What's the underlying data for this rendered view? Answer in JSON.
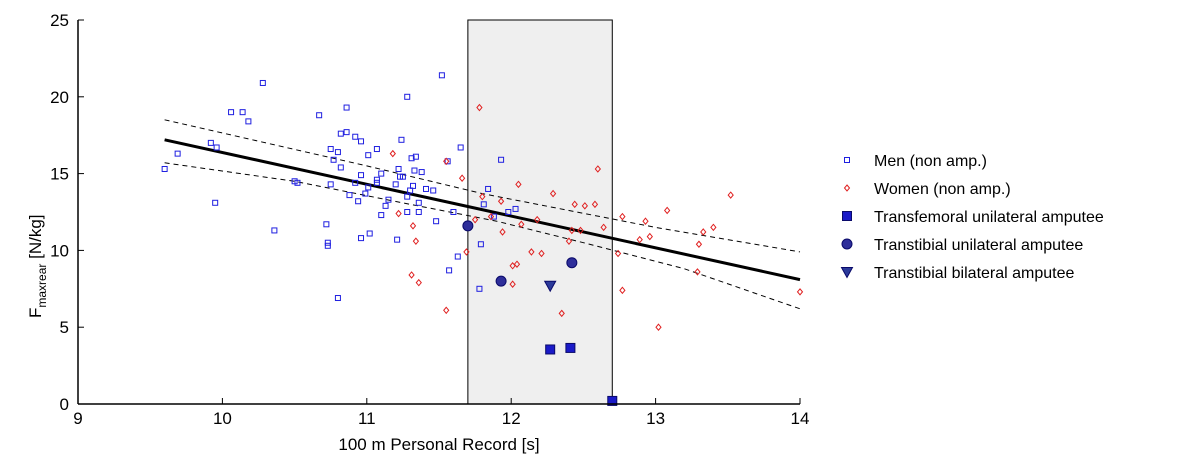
{
  "chart_data": {
    "type": "scatter",
    "title": "",
    "xlabel": "100 m Personal Record [s]",
    "ylabel": {
      "main": "F",
      "subscript": "maxrear",
      "unit": " [N/kg]"
    },
    "xlim": [
      9,
      14
    ],
    "ylim": [
      0,
      25
    ],
    "xticks": [
      "9",
      "10",
      "11",
      "12",
      "13",
      "14"
    ],
    "yticks": [
      "0",
      "5",
      "10",
      "15",
      "20",
      "25"
    ],
    "grid": false,
    "legend_position": "right",
    "shaded_region": {
      "x_start": 11.7,
      "x_end": 12.7
    },
    "regression": {
      "fit": [
        [
          9.6,
          17.2
        ],
        [
          14.0,
          8.1
        ]
      ],
      "ci_upper": [
        [
          9.6,
          18.5
        ],
        [
          11.0,
          15.5
        ],
        [
          11.8,
          13.7
        ],
        [
          12.4,
          12.6
        ],
        [
          13.0,
          11.5
        ],
        [
          14.0,
          9.9
        ]
      ],
      "ci_lower": [
        [
          9.6,
          15.7
        ],
        [
          10.5,
          14.5
        ],
        [
          11.3,
          13.0
        ],
        [
          11.9,
          11.9
        ],
        [
          12.5,
          10.5
        ],
        [
          13.2,
          8.8
        ],
        [
          14.0,
          6.2
        ]
      ]
    },
    "series": [
      {
        "name": "Men (non amp.)",
        "marker": "square-open",
        "color": "#1f1fe0",
        "points": [
          [
            9.6,
            15.3
          ],
          [
            9.69,
            16.3
          ],
          [
            9.95,
            13.1
          ],
          [
            9.96,
            16.7
          ],
          [
            9.92,
            17.0
          ],
          [
            10.06,
            19.0
          ],
          [
            10.14,
            19.0
          ],
          [
            10.18,
            18.4
          ],
          [
            10.28,
            20.9
          ],
          [
            10.36,
            11.3
          ],
          [
            10.5,
            14.5
          ],
          [
            10.67,
            18.8
          ],
          [
            10.72,
            11.7
          ],
          [
            10.73,
            10.3
          ],
          [
            10.73,
            10.5
          ],
          [
            10.75,
            14.3
          ],
          [
            10.75,
            16.6
          ],
          [
            10.77,
            15.9
          ],
          [
            10.8,
            6.9
          ],
          [
            10.8,
            16.4
          ],
          [
            10.82,
            15.4
          ],
          [
            10.82,
            17.6
          ],
          [
            10.86,
            17.7
          ],
          [
            10.86,
            19.3
          ],
          [
            10.88,
            13.6
          ],
          [
            10.92,
            14.4
          ],
          [
            10.92,
            17.4
          ],
          [
            10.94,
            13.2
          ],
          [
            10.96,
            14.9
          ],
          [
            10.96,
            10.8
          ],
          [
            10.96,
            17.1
          ],
          [
            11.01,
            14.1
          ],
          [
            11.01,
            16.2
          ],
          [
            11.02,
            11.1
          ],
          [
            11.07,
            16.6
          ],
          [
            11.07,
            14.4
          ],
          [
            11.07,
            14.6
          ],
          [
            11.1,
            12.3
          ],
          [
            11.13,
            12.9
          ],
          [
            11.15,
            13.3
          ],
          [
            11.2,
            14.3
          ],
          [
            11.22,
            15.3
          ],
          [
            11.23,
            14.8
          ],
          [
            11.24,
            17.2
          ],
          [
            11.25,
            14.8
          ],
          [
            11.28,
            13.5
          ],
          [
            11.28,
            12.5
          ],
          [
            11.28,
            20.0
          ],
          [
            11.3,
            13.9
          ],
          [
            11.31,
            16.0
          ],
          [
            11.32,
            14.2
          ],
          [
            11.33,
            15.2
          ],
          [
            11.34,
            16.1
          ],
          [
            11.36,
            13.1
          ],
          [
            11.36,
            12.5
          ],
          [
            11.38,
            15.1
          ],
          [
            11.41,
            14.0
          ],
          [
            11.46,
            13.9
          ],
          [
            11.48,
            11.9
          ],
          [
            11.52,
            21.4
          ],
          [
            11.56,
            15.8
          ],
          [
            11.57,
            8.7
          ],
          [
            11.6,
            12.5
          ],
          [
            11.63,
            9.6
          ],
          [
            11.65,
            16.7
          ],
          [
            11.78,
            7.5
          ],
          [
            11.79,
            10.4
          ],
          [
            11.81,
            13.0
          ],
          [
            11.84,
            14.0
          ],
          [
            11.88,
            12.2
          ],
          [
            11.93,
            15.9
          ],
          [
            11.98,
            12.5
          ],
          [
            12.03,
            12.7
          ],
          [
            11.21,
            10.7
          ],
          [
            10.52,
            14.4
          ],
          [
            11.1,
            15.0
          ],
          [
            10.99,
            13.7
          ]
        ]
      },
      {
        "name": "Women (non amp.)",
        "marker": "diamond-open",
        "color": "#e02020",
        "points": [
          [
            11.18,
            16.3
          ],
          [
            11.22,
            12.4
          ],
          [
            11.31,
            8.4
          ],
          [
            11.32,
            11.6
          ],
          [
            11.34,
            10.6
          ],
          [
            11.36,
            7.9
          ],
          [
            11.55,
            6.1
          ],
          [
            11.55,
            15.8
          ],
          [
            11.66,
            14.7
          ],
          [
            11.69,
            9.9
          ],
          [
            11.75,
            12.0
          ],
          [
            11.78,
            19.3
          ],
          [
            11.8,
            13.5
          ],
          [
            11.86,
            12.2
          ],
          [
            11.93,
            13.2
          ],
          [
            11.94,
            11.2
          ],
          [
            12.01,
            9.0
          ],
          [
            12.01,
            7.8
          ],
          [
            12.04,
            9.1
          ],
          [
            12.05,
            14.3
          ],
          [
            12.07,
            11.7
          ],
          [
            12.14,
            9.9
          ],
          [
            12.18,
            12.0
          ],
          [
            12.21,
            9.8
          ],
          [
            12.29,
            13.7
          ],
          [
            12.35,
            5.9
          ],
          [
            12.4,
            10.6
          ],
          [
            12.42,
            11.3
          ],
          [
            12.44,
            13.0
          ],
          [
            12.48,
            11.3
          ],
          [
            12.51,
            12.9
          ],
          [
            12.58,
            13.0
          ],
          [
            12.6,
            15.3
          ],
          [
            12.64,
            11.5
          ],
          [
            12.74,
            9.8
          ],
          [
            12.77,
            7.4
          ],
          [
            12.77,
            12.2
          ],
          [
            12.89,
            10.7
          ],
          [
            12.93,
            11.9
          ],
          [
            12.96,
            10.9
          ],
          [
            13.02,
            5.0
          ],
          [
            13.08,
            12.6
          ],
          [
            13.29,
            8.6
          ],
          [
            13.3,
            10.4
          ],
          [
            13.33,
            11.2
          ],
          [
            13.4,
            11.5
          ],
          [
            13.52,
            13.6
          ],
          [
            14.0,
            7.3
          ]
        ]
      },
      {
        "name": "Transfemoral unilateral amputee",
        "marker": "square-filled",
        "color": "#1a1ac8",
        "points": [
          [
            12.27,
            3.55
          ],
          [
            12.41,
            3.65
          ],
          [
            12.7,
            0.2
          ]
        ]
      },
      {
        "name": "Transtibial unilateral amputee",
        "marker": "circle-filled",
        "color": "#2e2e9a",
        "points": [
          [
            11.7,
            11.6
          ],
          [
            11.93,
            8.0
          ],
          [
            12.42,
            9.2
          ]
        ]
      },
      {
        "name": "Transtibial bilateral amputee",
        "marker": "triangle-down-filled",
        "color": "#2b3a9a",
        "points": [
          [
            12.27,
            7.7
          ]
        ]
      }
    ]
  }
}
